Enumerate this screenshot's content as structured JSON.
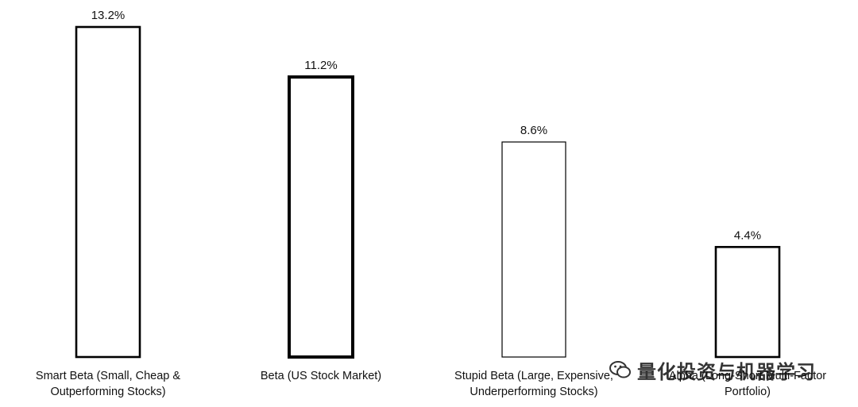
{
  "chart_data": {
    "type": "bar",
    "categories": [
      [
        "Smart Beta (Small, Cheap &",
        "Outperforming Stocks)"
      ],
      [
        "Beta (US Stock Market)"
      ],
      [
        "Stupid Beta (Large, Expensive,",
        "Underperforming Stocks)"
      ],
      [
        "Alpha (Long-Short Multi-Factor",
        "Portfolio)"
      ]
    ],
    "values": [
      13.2,
      11.2,
      8.6,
      4.4
    ],
    "value_labels": [
      "13.2%",
      "11.2%",
      "8.6%",
      "4.4%"
    ],
    "bar_stroke_weight": [
      "normal",
      "bold",
      "thin",
      "normal"
    ],
    "ylim": [
      0,
      13.2
    ],
    "grid": false,
    "bar_fill": "#ffffff",
    "bar_stroke": "#000000"
  },
  "watermark": {
    "text": "量化投资与机器学习",
    "icon": "wechat-icon"
  }
}
